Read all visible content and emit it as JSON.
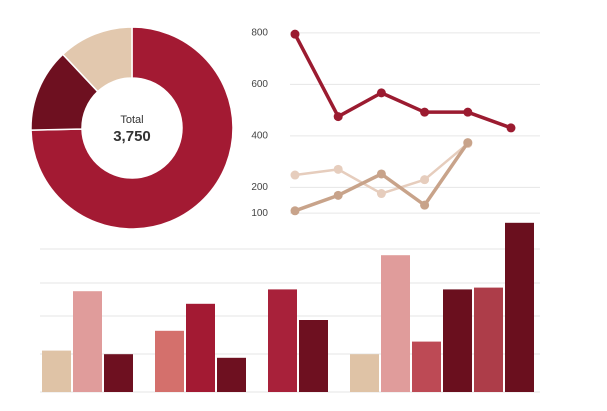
{
  "chart_data": [
    {
      "type": "donut",
      "center_label": "Total",
      "total_label": "3,750",
      "values": [
        2800,
        500,
        450
      ],
      "colors": [
        "#a31a33",
        "#6e1020",
        "#e2c8ae"
      ]
    },
    {
      "type": "line",
      "categories": [
        null,
        null,
        null,
        null,
        null,
        null
      ],
      "ylim": [
        50,
        850
      ],
      "yticks": [
        100,
        200,
        400,
        600,
        800
      ],
      "grid": true,
      "series": [
        {
          "color": "#9b1b30",
          "values": [
            795,
            475,
            567,
            492,
            492,
            431
          ]
        },
        {
          "color": "#e6cdbd",
          "values": [
            248,
            270,
            176,
            230,
            370,
            null
          ]
        },
        {
          "color": "#c8a38a",
          "values": [
            109,
            169,
            252,
            131,
            374,
            null
          ]
        }
      ]
    },
    {
      "type": "grouped-bar",
      "ylim": [
        0,
        100
      ],
      "groups": [
        [
          {
            "value": 23,
            "color": "#dfc3a6"
          },
          {
            "value": 56,
            "color": "#e09c9b"
          },
          {
            "value": 21,
            "color": "#6e1020"
          }
        ],
        [
          {
            "value": 34,
            "color": "#d4706c"
          },
          {
            "value": 49,
            "color": "#a31a33"
          },
          {
            "value": 19,
            "color": "#6e1020"
          }
        ],
        [
          {
            "value": 57,
            "color": "#a8213a"
          },
          {
            "value": 40,
            "color": "#6e1020"
          }
        ],
        [
          {
            "value": 21,
            "color": "#dfc3a6"
          },
          {
            "value": 76,
            "color": "#e09c9b"
          },
          {
            "value": 28,
            "color": "#bd4a55"
          },
          {
            "value": 57,
            "color": "#6a0f1e"
          },
          {
            "value": 58,
            "color": "#ad3d49"
          },
          {
            "value": 94,
            "color": "#6a0f1e"
          }
        ]
      ]
    }
  ]
}
